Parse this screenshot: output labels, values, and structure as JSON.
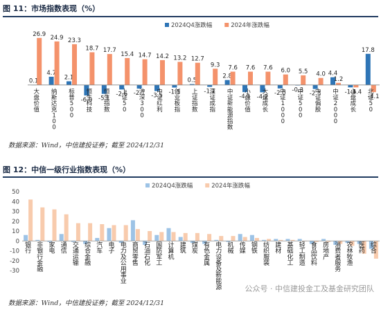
{
  "figures": [
    {
      "title": "图 11：市场指数表现（%）",
      "source": "数据来源：Wind，中信建投证券；截至 2024/12/31"
    },
    {
      "title": "图 12：中信一级行业指数表现（%）",
      "source": "数据来源：Wind，中信建投证券；截至 2024/12/31"
    }
  ],
  "watermark": "公众号 · 中信建投金工及基金研究团队",
  "chart_data": [
    {
      "type": "bar",
      "title": "市场指数表现（%）",
      "categories": [
        "大盘价值",
        "纳斯达克100",
        "标普500",
        "恒生科技",
        "恒生指数",
        "上证50",
        "沪深300",
        "中证红利",
        "创业板指",
        "上证指数",
        "深证成指",
        "中证新能源指数",
        "小盘价值",
        "大盘成长",
        "中证1000",
        "中证500",
        "中证偏股",
        "中证2000",
        "小盘成长",
        "北证50"
      ],
      "series": [
        {
          "name": "2024Q4涨跌幅",
          "color": "#2e75b6",
          "values": [
            0.1,
            4.7,
            2.1,
            -6.0,
            -5.1,
            -2.6,
            -2.1,
            -3.5,
            -1.5,
            0.5,
            -1.1,
            2.8,
            -4.1,
            -4.2,
            -2.0,
            -0.3,
            -2.3,
            4.4,
            -1.4,
            17.8
          ]
        },
        {
          "name": "2024年涨跌幅",
          "color": "#f4926b",
          "values": [
            26.9,
            24.9,
            23.3,
            18.7,
            17.7,
            15.4,
            14.7,
            14.2,
            13.2,
            12.7,
            9.3,
            7.6,
            7.6,
            7.6,
            6.0,
            5.5,
            4.0,
            1.2,
            -1.4,
            -4.1
          ]
        }
      ],
      "ylim": [
        -8,
        30
      ],
      "grid": false,
      "data_labels": true,
      "legend": "top"
    },
    {
      "type": "bar",
      "title": "中信一级行业指数表现（%）",
      "categories": [
        "银行",
        "非银行金融",
        "家电",
        "通信",
        "交通运输",
        "综合金融",
        "汽车",
        "电子",
        "电力及公用事业",
        "商贸零售",
        "石油石化",
        "国防军工",
        "计算机",
        "建筑",
        "煤炭",
        "有色金属",
        "电力设备及新能源",
        "机械",
        "传媒",
        "钢铁",
        "纺织服装",
        "建材",
        "基础化工",
        "轻工制造",
        "食品饮料",
        "房地产",
        "消费者服务",
        "农林牧渔",
        "医药",
        "综合"
      ],
      "series": [
        {
          "name": "2024Q4涨跌幅",
          "color": "#9dc3e6",
          "values": [
            6,
            1,
            -1,
            7,
            -1,
            -3,
            3,
            13,
            -2,
            21,
            -4,
            6,
            13,
            4,
            -2,
            -3,
            1,
            -1,
            7,
            6,
            1,
            2,
            2,
            2,
            -3,
            2,
            -4,
            -2,
            -3,
            -8
          ]
        },
        {
          "name": "2024年涨跌幅",
          "color": "#f8cbad",
          "values": [
            42,
            34,
            32,
            27,
            18,
            18,
            17,
            16,
            16,
            12,
            10,
            9,
            9,
            8,
            8,
            7,
            5,
            5,
            4,
            3,
            2,
            1,
            1,
            0,
            -1,
            -1,
            -3,
            -5,
            -13,
            -18
          ]
        }
      ],
      "ylim": [
        -30,
        50
      ],
      "yticks": [
        -30,
        -20,
        -10,
        0,
        10,
        20,
        30,
        40,
        50
      ],
      "grid": false,
      "data_labels": false,
      "legend": "top"
    }
  ]
}
